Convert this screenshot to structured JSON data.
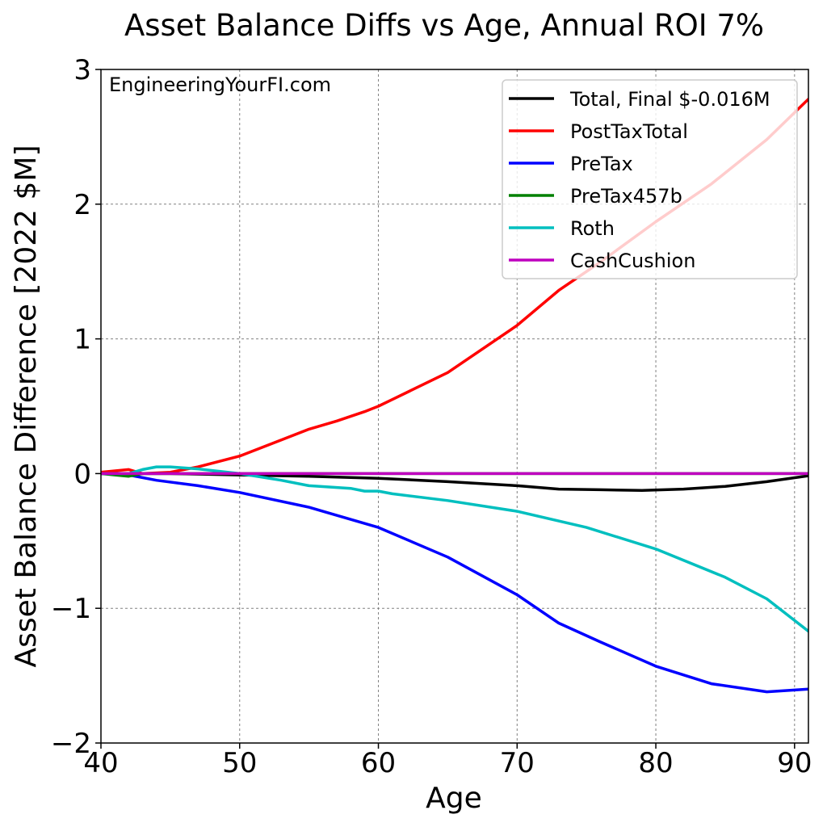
{
  "chart_data": {
    "type": "line",
    "title": "Asset Balance Diffs vs Age, Annual ROI 7%",
    "xlabel": "Age",
    "ylabel": "Asset Balance Difference [2022 $M]",
    "watermark": "EngineeringYourFI.com",
    "xlim": [
      40,
      91
    ],
    "ylim": [
      -2,
      3
    ],
    "xticks": [
      40,
      50,
      60,
      70,
      80,
      90
    ],
    "xtick_labels": [
      "40",
      "50",
      "60",
      "70",
      "80",
      "90"
    ],
    "yticks": [
      -2,
      -1,
      0,
      1,
      2,
      3
    ],
    "ytick_labels": [
      "−2",
      "−1",
      "0",
      "1",
      "2",
      "3"
    ],
    "grid": true,
    "legend_position": "top-right",
    "series": [
      {
        "name": "Total, Final $-0.016M",
        "color": "#000000",
        "x": [
          40,
          42,
          45,
          50,
          55,
          60,
          65,
          70,
          73,
          76,
          79,
          82,
          85,
          88,
          91
        ],
        "y": [
          0.0,
          0.0,
          0.0,
          -0.01,
          -0.02,
          -0.035,
          -0.06,
          -0.09,
          -0.115,
          -0.12,
          -0.125,
          -0.115,
          -0.095,
          -0.06,
          -0.016
        ]
      },
      {
        "name": "PostTaxTotal",
        "color": "#ff0000",
        "x": [
          40,
          42,
          43,
          45,
          47,
          50,
          53,
          55,
          57,
          59,
          60,
          61,
          65,
          70,
          73,
          76,
          80,
          84,
          88,
          91
        ],
        "y": [
          0.01,
          0.03,
          0.0,
          0.01,
          0.05,
          0.13,
          0.25,
          0.33,
          0.39,
          0.46,
          0.5,
          0.55,
          0.75,
          1.1,
          1.36,
          1.57,
          1.87,
          2.15,
          2.48,
          2.78
        ]
      },
      {
        "name": "PreTax",
        "color": "#0000ff",
        "x": [
          40,
          42,
          44,
          47,
          50,
          55,
          60,
          65,
          70,
          73,
          76,
          80,
          84,
          88,
          91
        ],
        "y": [
          0.0,
          -0.01,
          -0.05,
          -0.09,
          -0.14,
          -0.25,
          -0.4,
          -0.62,
          -0.9,
          -1.11,
          -1.25,
          -1.43,
          -1.56,
          -1.62,
          -1.6
        ]
      },
      {
        "name": "PreTax457b",
        "color": "#008000",
        "x": [
          40,
          41,
          42,
          43,
          44,
          91
        ],
        "y": [
          0.0,
          -0.01,
          -0.02,
          0.0,
          0.0,
          0.0
        ]
      },
      {
        "name": "Roth",
        "color": "#00bfbf",
        "x": [
          40,
          42,
          43,
          44,
          45,
          47,
          50,
          53,
          55,
          58,
          59,
          60,
          61,
          65,
          70,
          75,
          80,
          85,
          88,
          91
        ],
        "y": [
          0.0,
          0.0,
          0.03,
          0.05,
          0.05,
          0.035,
          0.0,
          -0.05,
          -0.09,
          -0.11,
          -0.13,
          -0.13,
          -0.15,
          -0.2,
          -0.28,
          -0.4,
          -0.56,
          -0.77,
          -0.93,
          -1.17
        ]
      },
      {
        "name": "CashCushion",
        "color": "#bf00bf",
        "x": [
          40,
          91
        ],
        "y": [
          0.0,
          0.0
        ]
      }
    ]
  }
}
